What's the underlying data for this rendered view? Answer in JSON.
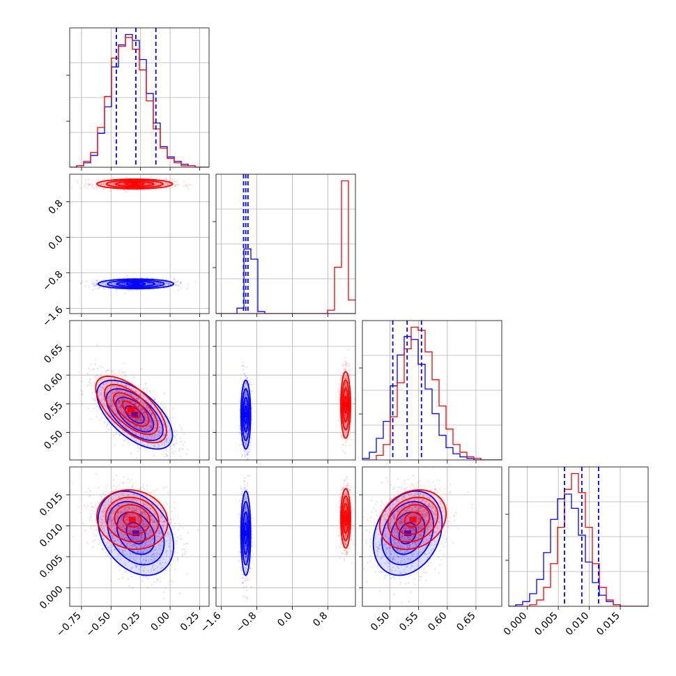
{
  "chart_data": {
    "type": "corner",
    "colors": {
      "series_a": "#0000ff",
      "series_b": "#ff0000",
      "grid": "#b0b0b0",
      "frame": "#000000"
    },
    "grid": true,
    "series": [
      {
        "color": "#0000ff"
      },
      {
        "color": "#ff0000"
      }
    ],
    "params": [
      {
        "range": [
          -0.85,
          0.33
        ],
        "ticks": [
          -0.75,
          -0.5,
          -0.25,
          0.0,
          0.25
        ],
        "tick_labels": [
          "−0.75",
          "−0.50",
          "−0.25",
          "0.00",
          "0.25"
        ],
        "quantiles_series_a": [
          -0.455,
          -0.29,
          -0.12
        ]
      },
      {
        "range": [
          -1.72,
          1.42
        ],
        "ticks": [
          -1.6,
          -0.8,
          0.0,
          0.8
        ],
        "tick_labels": [
          "−1.6",
          "−0.8",
          "0.0",
          "0.8"
        ],
        "quantiles_series_a": [
          -1.1,
          -1.05,
          -1.0
        ]
      },
      {
        "range": [
          0.452,
          0.695
        ],
        "ticks": [
          0.5,
          0.55,
          0.6,
          0.65
        ],
        "tick_labels": [
          "0.50",
          "0.55",
          "0.60",
          "0.65"
        ],
        "quantiles_series_a": [
          0.505,
          0.53,
          0.555
        ]
      },
      {
        "range": [
          -0.003,
          0.0195
        ],
        "ticks": [
          0.0,
          0.005,
          0.01,
          0.015
        ],
        "tick_labels": [
          "0.000",
          "0.005",
          "0.010",
          "0.015"
        ],
        "quantiles_series_a": [
          0.006,
          0.0088,
          0.0115
        ]
      }
    ],
    "hist_bins": [
      {
        "lo": -0.85,
        "hi": 0.33,
        "n": 20
      },
      {
        "lo": -1.72,
        "hi": 1.42,
        "n": 20
      },
      {
        "lo": 0.452,
        "hi": 0.695,
        "n": 20
      },
      {
        "lo": -0.003,
        "hi": 0.0195,
        "n": 20
      }
    ],
    "hist_counts": {
      "series_a": [
        [
          0,
          1,
          3,
          8,
          23,
          41,
          68,
          83,
          90,
          86,
          73,
          50,
          30,
          14,
          7,
          4,
          2,
          1,
          0,
          0
        ],
        [
          0,
          0,
          0,
          8,
          95,
          80,
          3,
          0,
          0,
          0,
          0,
          0,
          0,
          0,
          0,
          0,
          0,
          0,
          0,
          0
        ],
        [
          1,
          5,
          14,
          25,
          48,
          68,
          80,
          78,
          62,
          46,
          30,
          16,
          8,
          4,
          2,
          1,
          0,
          0,
          0,
          0
        ],
        [
          0,
          1,
          3,
          8,
          17,
          34,
          55,
          68,
          71,
          62,
          45,
          28,
          15,
          7,
          3,
          1,
          0,
          0,
          0,
          0
        ]
      ],
      "series_b": [
        [
          0,
          1,
          4,
          10,
          27,
          48,
          74,
          82,
          88,
          80,
          66,
          45,
          26,
          13,
          6,
          3,
          1,
          1,
          0,
          0
        ],
        [
          0,
          0,
          0,
          0,
          0,
          0,
          0,
          0,
          0,
          0,
          0,
          0,
          0,
          0,
          0,
          0,
          5,
          68,
          195,
          20
        ],
        [
          0,
          0,
          3,
          10,
          28,
          50,
          72,
          86,
          84,
          70,
          52,
          35,
          20,
          10,
          5,
          2,
          1,
          0,
          0,
          0
        ],
        [
          0,
          0,
          0,
          1,
          4,
          12,
          27,
          50,
          74,
          84,
          72,
          50,
          27,
          12,
          4,
          1,
          0,
          0,
          0,
          0
        ]
      ]
    },
    "pair_clusters": {
      "series_a": [
        {
          "row": 1,
          "col": 0,
          "mx": -0.29,
          "my": -1.05,
          "sx": 0.16,
          "sy": 0.055,
          "rho": 0.0
        },
        {
          "row": 2,
          "col": 0,
          "mx": -0.3,
          "my": 0.531,
          "sx": 0.16,
          "sy": 0.03,
          "rho": -0.6
        },
        {
          "row": 2,
          "col": 1,
          "mx": -1.05,
          "my": 0.531,
          "sx": 0.055,
          "sy": 0.03,
          "rho": 0.0
        },
        {
          "row": 3,
          "col": 0,
          "mx": -0.29,
          "my": 0.0088,
          "sx": 0.16,
          "sy": 0.0034,
          "rho": -0.3
        },
        {
          "row": 3,
          "col": 1,
          "mx": -1.05,
          "my": 0.0088,
          "sx": 0.055,
          "sy": 0.0034,
          "rho": 0.0
        },
        {
          "row": 3,
          "col": 2,
          "mx": 0.531,
          "my": 0.0088,
          "sx": 0.03,
          "sy": 0.0034,
          "rho": 0.25
        }
      ],
      "series_b": [
        {
          "row": 1,
          "col": 0,
          "mx": -0.3,
          "my": 1.2,
          "sx": 0.16,
          "sy": 0.055,
          "rho": 0.0
        },
        {
          "row": 2,
          "col": 0,
          "mx": -0.33,
          "my": 0.54,
          "sx": 0.15,
          "sy": 0.029,
          "rho": -0.65
        },
        {
          "row": 2,
          "col": 1,
          "mx": 1.2,
          "my": 0.548,
          "sx": 0.055,
          "sy": 0.029,
          "rho": 0.0
        },
        {
          "row": 3,
          "col": 0,
          "mx": -0.32,
          "my": 0.011,
          "sx": 0.15,
          "sy": 0.0024,
          "rho": -0.1
        },
        {
          "row": 3,
          "col": 1,
          "mx": 1.2,
          "my": 0.0112,
          "sx": 0.055,
          "sy": 0.0024,
          "rho": 0.0
        },
        {
          "row": 3,
          "col": 2,
          "mx": 0.54,
          "my": 0.011,
          "sx": 0.029,
          "sy": 0.0024,
          "rho": 0.2
        }
      ]
    },
    "contour_sigmas": [
      0.5,
      1.0,
      1.5,
      2.0
    ]
  }
}
